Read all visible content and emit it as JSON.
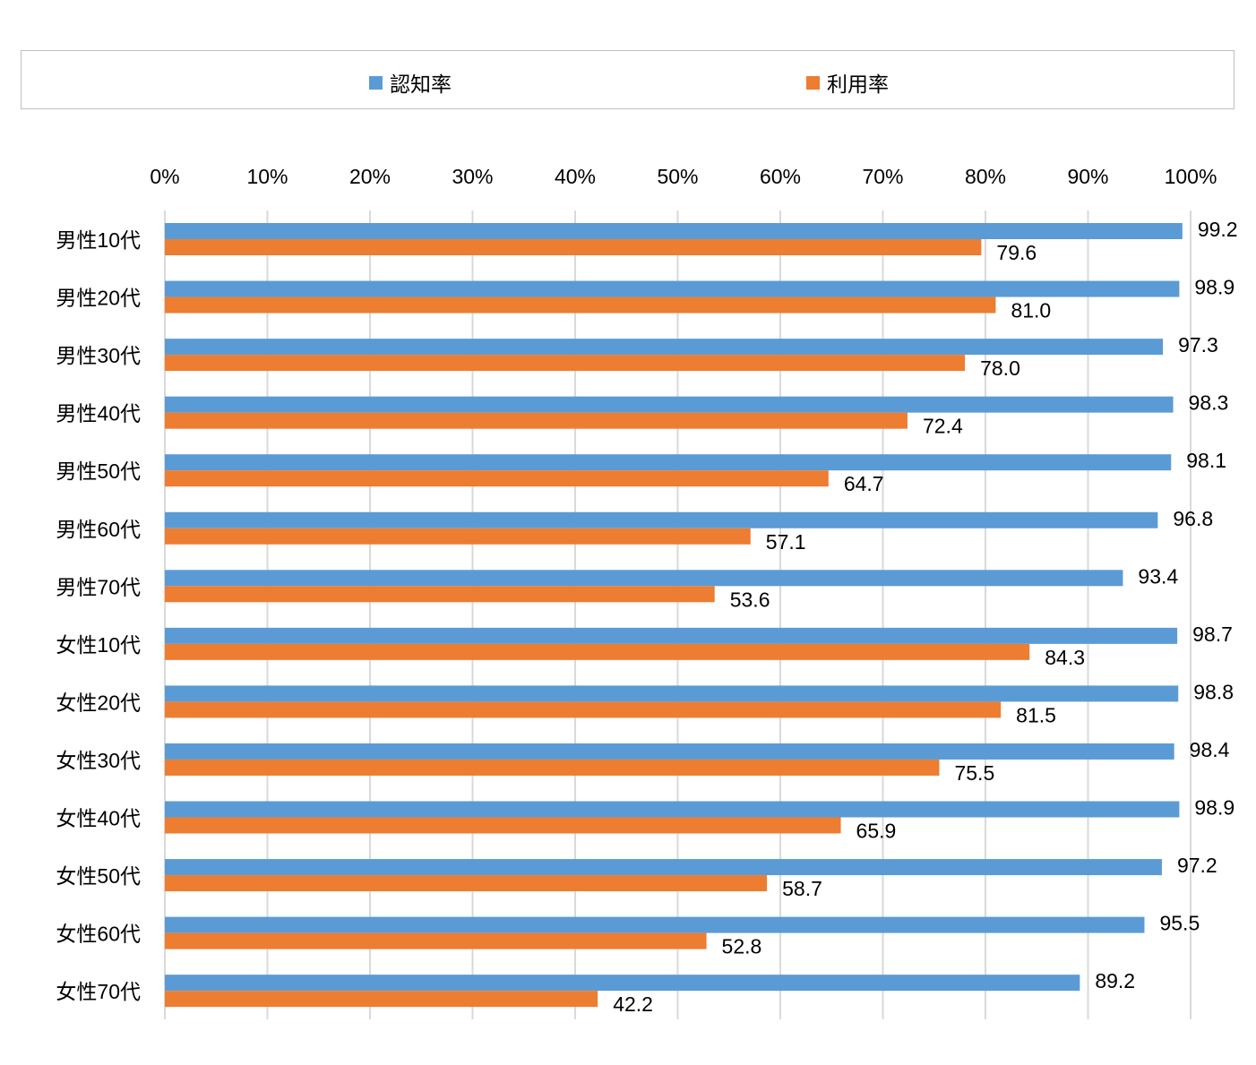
{
  "chart_data": {
    "type": "bar",
    "orientation": "horizontal",
    "categories": [
      "男性10代",
      "男性20代",
      "男性30代",
      "男性40代",
      "男性50代",
      "男性60代",
      "男性70代",
      "女性10代",
      "女性20代",
      "女性30代",
      "女性40代",
      "女性50代",
      "女性60代",
      "女性70代"
    ],
    "series": [
      {
        "name": "認知率",
        "color": "#5B9BD5",
        "values": [
          99.2,
          98.9,
          97.3,
          98.3,
          98.1,
          96.8,
          93.4,
          98.7,
          98.8,
          98.4,
          98.9,
          97.2,
          95.5,
          89.2
        ]
      },
      {
        "name": "利用率",
        "color": "#ED7D31",
        "values": [
          79.6,
          81.0,
          78.0,
          72.4,
          64.7,
          57.1,
          53.6,
          84.3,
          81.5,
          75.5,
          65.9,
          58.7,
          52.8,
          42.2
        ]
      }
    ],
    "xlim": [
      0,
      100
    ],
    "xticks": [
      "0%",
      "10%",
      "20%",
      "30%",
      "40%",
      "50%",
      "60%",
      "70%",
      "80%",
      "90%",
      "100%"
    ],
    "x_axis_position": "top",
    "grid": true,
    "legend_position": "top",
    "data_labels": true
  }
}
